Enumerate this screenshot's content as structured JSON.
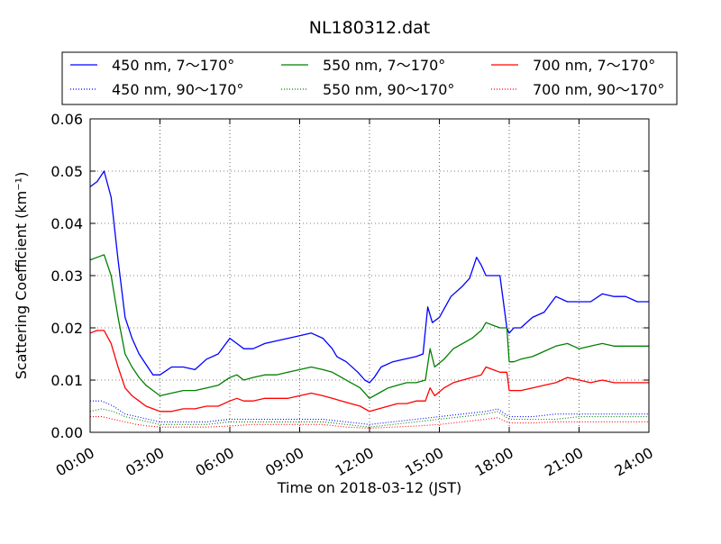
{
  "chart_data": {
    "type": "line",
    "title": "NL180312.dat",
    "xlabel": "Time on 2018-03-12 (JST)",
    "ylabel": "Scattering Coefficient (km⁻¹)",
    "xlim": [
      0,
      24
    ],
    "ylim": [
      0,
      0.06
    ],
    "x_tick_labels": [
      "00:00",
      "03:00",
      "06:00",
      "09:00",
      "12:00",
      "15:00",
      "18:00",
      "21:00",
      "24:00"
    ],
    "y_tick_labels": [
      "0.00",
      "0.01",
      "0.02",
      "0.03",
      "0.04",
      "0.05",
      "0.06"
    ],
    "grid": true,
    "legend_position": "top (above plot)",
    "legend": {
      "s450_total": "450 nm, 7～170°",
      "s550_total": "550 nm, 7～170°",
      "s700_total": "700 nm, 7～170°",
      "s450_back": "450 nm, 90～170°",
      "s550_back": "550 nm, 90～170°",
      "s700_back": "700 nm, 90～170°"
    },
    "series": [
      {
        "key": "s450_total",
        "color": "#0000ff",
        "style": "solid",
        "x": [
          0,
          0.3,
          0.6,
          0.9,
          1.2,
          1.5,
          1.8,
          2.1,
          2.4,
          2.7,
          3.0,
          3.5,
          4.0,
          4.5,
          5.0,
          5.5,
          6.0,
          6.3,
          6.6,
          7.0,
          7.5,
          8.0,
          8.5,
          9.0,
          9.5,
          10.0,
          10.2,
          10.4,
          10.6,
          11.0,
          11.5,
          11.8,
          12.0,
          12.2,
          12.5,
          13.0,
          13.5,
          14.0,
          14.3,
          14.5,
          14.7,
          15.0,
          15.5,
          16.0,
          16.3,
          16.6,
          16.8,
          17.0,
          17.3,
          17.6,
          17.9,
          18.0,
          18.2,
          18.5,
          19.0,
          19.5,
          20.0,
          20.5,
          21.0,
          21.5,
          22.0,
          22.5,
          23.0,
          23.5,
          24.0
        ],
        "values": [
          0.047,
          0.048,
          0.05,
          0.045,
          0.033,
          0.022,
          0.018,
          0.015,
          0.013,
          0.011,
          0.011,
          0.0125,
          0.0125,
          0.012,
          0.014,
          0.015,
          0.018,
          0.017,
          0.016,
          0.016,
          0.017,
          0.0175,
          0.018,
          0.0185,
          0.019,
          0.018,
          0.017,
          0.016,
          0.0145,
          0.0135,
          0.0115,
          0.01,
          0.0095,
          0.0105,
          0.0125,
          0.0135,
          0.014,
          0.0145,
          0.015,
          0.024,
          0.021,
          0.022,
          0.026,
          0.028,
          0.0295,
          0.0335,
          0.032,
          0.03,
          0.03,
          0.03,
          0.02,
          0.019,
          0.02,
          0.02,
          0.022,
          0.023,
          0.026,
          0.025,
          0.025,
          0.025,
          0.0265,
          0.026,
          0.026,
          0.025,
          0.025
        ]
      },
      {
        "key": "s550_total",
        "color": "#008000",
        "style": "solid",
        "x": [
          0,
          0.3,
          0.6,
          0.9,
          1.2,
          1.5,
          1.8,
          2.1,
          2.4,
          2.7,
          3.0,
          3.5,
          4.0,
          4.5,
          5.0,
          5.5,
          6.0,
          6.3,
          6.6,
          7.0,
          7.5,
          8.0,
          8.5,
          9.0,
          9.5,
          10.0,
          10.4,
          10.8,
          11.2,
          11.6,
          12.0,
          12.4,
          12.8,
          13.2,
          13.6,
          14.0,
          14.4,
          14.6,
          14.8,
          15.2,
          15.6,
          16.0,
          16.4,
          16.8,
          17.0,
          17.3,
          17.6,
          17.9,
          18.0,
          18.2,
          18.5,
          19.0,
          19.5,
          20.0,
          20.5,
          21.0,
          21.5,
          22.0,
          22.5,
          23.0,
          23.5,
          24.0
        ],
        "values": [
          0.033,
          0.0335,
          0.034,
          0.03,
          0.022,
          0.015,
          0.0125,
          0.0105,
          0.009,
          0.008,
          0.007,
          0.0075,
          0.008,
          0.008,
          0.0085,
          0.009,
          0.0105,
          0.011,
          0.01,
          0.0105,
          0.011,
          0.011,
          0.0115,
          0.012,
          0.0125,
          0.012,
          0.0115,
          0.0105,
          0.0095,
          0.0085,
          0.0065,
          0.0075,
          0.0085,
          0.009,
          0.0095,
          0.0095,
          0.01,
          0.016,
          0.0125,
          0.014,
          0.016,
          0.017,
          0.018,
          0.0195,
          0.021,
          0.0205,
          0.02,
          0.02,
          0.0135,
          0.0135,
          0.014,
          0.0145,
          0.0155,
          0.0165,
          0.017,
          0.016,
          0.0165,
          0.017,
          0.0165,
          0.0165,
          0.0165,
          0.0165
        ]
      },
      {
        "key": "s700_total",
        "color": "#ff0000",
        "style": "solid",
        "x": [
          0,
          0.3,
          0.6,
          0.9,
          1.2,
          1.5,
          1.8,
          2.1,
          2.4,
          2.7,
          3.0,
          3.5,
          4.0,
          4.5,
          5.0,
          5.5,
          6.0,
          6.3,
          6.6,
          7.0,
          7.5,
          8.0,
          8.5,
          9.0,
          9.5,
          10.0,
          10.4,
          10.8,
          11.2,
          11.6,
          12.0,
          12.4,
          12.8,
          13.2,
          13.6,
          14.0,
          14.4,
          14.6,
          14.8,
          15.2,
          15.6,
          16.0,
          16.4,
          16.8,
          17.0,
          17.3,
          17.6,
          17.9,
          18.0,
          18.2,
          18.5,
          19.0,
          19.5,
          20.0,
          20.5,
          21.0,
          21.5,
          22.0,
          22.5,
          23.0,
          23.5,
          24.0
        ],
        "values": [
          0.019,
          0.0195,
          0.0195,
          0.017,
          0.0125,
          0.0085,
          0.007,
          0.006,
          0.005,
          0.0045,
          0.004,
          0.004,
          0.0045,
          0.0045,
          0.005,
          0.005,
          0.006,
          0.0065,
          0.006,
          0.006,
          0.0065,
          0.0065,
          0.0065,
          0.007,
          0.0075,
          0.007,
          0.0065,
          0.006,
          0.0055,
          0.005,
          0.004,
          0.0045,
          0.005,
          0.0055,
          0.0055,
          0.006,
          0.006,
          0.0085,
          0.007,
          0.0085,
          0.0095,
          0.01,
          0.0105,
          0.011,
          0.0125,
          0.012,
          0.0115,
          0.0115,
          0.008,
          0.008,
          0.008,
          0.0085,
          0.009,
          0.0095,
          0.0105,
          0.01,
          0.0095,
          0.01,
          0.0095,
          0.0095,
          0.0095,
          0.0095
        ]
      },
      {
        "key": "s450_back",
        "color": "#0000ff",
        "style": "dotted",
        "x": [
          0,
          0.5,
          1.0,
          1.5,
          2.0,
          2.5,
          3.0,
          4.0,
          5.0,
          6.0,
          7.0,
          8.0,
          9.0,
          10.0,
          11.0,
          12.0,
          13.0,
          14.0,
          15.0,
          16.0,
          17.0,
          17.5,
          18.0,
          19.0,
          20.0,
          21.0,
          22.0,
          23.0,
          24.0
        ],
        "values": [
          0.006,
          0.006,
          0.005,
          0.0035,
          0.003,
          0.0025,
          0.002,
          0.002,
          0.002,
          0.0025,
          0.0025,
          0.0025,
          0.0025,
          0.0025,
          0.002,
          0.0015,
          0.002,
          0.0025,
          0.003,
          0.0035,
          0.004,
          0.0045,
          0.003,
          0.003,
          0.0035,
          0.0035,
          0.0035,
          0.0035,
          0.0035
        ]
      },
      {
        "key": "s550_back",
        "color": "#008000",
        "style": "dotted",
        "x": [
          0,
          0.5,
          1.0,
          1.5,
          2.0,
          2.5,
          3.0,
          4.0,
          5.0,
          6.0,
          7.0,
          8.0,
          9.0,
          10.0,
          11.0,
          12.0,
          13.0,
          14.0,
          15.0,
          16.0,
          17.0,
          17.5,
          18.0,
          19.0,
          20.0,
          21.0,
          22.0,
          23.0,
          24.0
        ],
        "values": [
          0.004,
          0.0045,
          0.004,
          0.003,
          0.0025,
          0.002,
          0.0015,
          0.0015,
          0.0015,
          0.002,
          0.002,
          0.002,
          0.002,
          0.002,
          0.0015,
          0.001,
          0.0015,
          0.002,
          0.0025,
          0.003,
          0.0035,
          0.004,
          0.0025,
          0.0025,
          0.0025,
          0.003,
          0.003,
          0.003,
          0.003
        ]
      },
      {
        "key": "s700_back",
        "color": "#ff0000",
        "style": "dotted",
        "x": [
          0,
          0.5,
          1.0,
          1.5,
          2.0,
          2.5,
          3.0,
          4.0,
          5.0,
          6.0,
          7.0,
          8.0,
          9.0,
          10.0,
          11.0,
          12.0,
          13.0,
          14.0,
          15.0,
          16.0,
          17.0,
          17.5,
          18.0,
          19.0,
          20.0,
          21.0,
          22.0,
          23.0,
          24.0
        ],
        "values": [
          0.003,
          0.003,
          0.0025,
          0.002,
          0.0015,
          0.0012,
          0.001,
          0.001,
          0.001,
          0.0012,
          0.0015,
          0.0015,
          0.0015,
          0.0015,
          0.001,
          0.0008,
          0.001,
          0.0012,
          0.0015,
          0.002,
          0.0025,
          0.0028,
          0.0018,
          0.0018,
          0.002,
          0.002,
          0.002,
          0.002,
          0.002
        ]
      }
    ]
  }
}
